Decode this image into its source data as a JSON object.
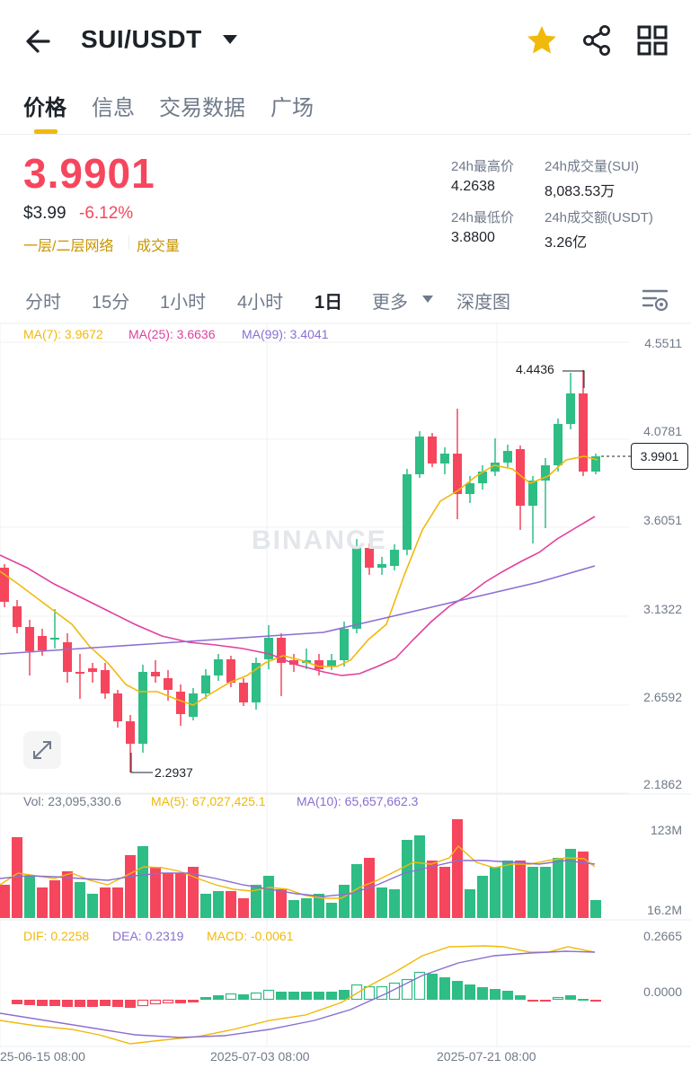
{
  "header": {
    "pair": "SUI/USDT",
    "icons": [
      "back-arrow-icon",
      "chevron-down-icon",
      "star-icon",
      "share-icon",
      "grid-icon"
    ]
  },
  "tabs": [
    {
      "label": "价格",
      "active": true
    },
    {
      "label": "信息",
      "active": false
    },
    {
      "label": "交易数据",
      "active": false
    },
    {
      "label": "广场",
      "active": false
    }
  ],
  "price": {
    "last": "3.9901",
    "usd": "$3.99",
    "change": "-6.12%",
    "tag_layer": "一层/二层网络",
    "tag_volume": "成交量"
  },
  "stats": {
    "high_label": "24h最高价",
    "high_value": "4.2638",
    "low_label": "24h最低价",
    "low_value": "3.8800",
    "vol_base_label": "24h成交量(SUI)",
    "vol_base_value": "8,083.53万",
    "vol_quote_label": "24h成交额(USDT)",
    "vol_quote_value": "3.26亿"
  },
  "intervals": [
    {
      "label": "分时",
      "active": false
    },
    {
      "label": "15分",
      "active": false
    },
    {
      "label": "1小时",
      "active": false
    },
    {
      "label": "4小时",
      "active": false
    },
    {
      "label": "1日",
      "active": true
    },
    {
      "label": "更多",
      "active": false
    },
    {
      "label": "深度图",
      "active": false
    }
  ],
  "colors": {
    "up": "#2ebd85",
    "down": "#f6465d",
    "ma7": "#f0b90b",
    "ma25": "#e040a0",
    "ma99": "#8a6fd1",
    "accent": "#f0b90b"
  },
  "chart": {
    "ma7": "MA(7): 3.9672",
    "ma25": "MA(25): 3.6636",
    "ma99": "MA(99): 3.4041",
    "price_axis": [
      "4.5511",
      "4.0781",
      "3.6051",
      "3.1322",
      "2.6592",
      "2.1862"
    ],
    "current_price": "3.9901",
    "high_marker": "4.4436",
    "low_marker": "2.2937",
    "watermark": "BINANCE",
    "vol": "Vol: 23,095,330.6",
    "vol_ma5": "MA(5): 67,027,425.1",
    "vol_ma10": "MA(10): 65,657,662.3",
    "vol_axis": [
      "123M",
      "16.2M"
    ],
    "dif": "DIF: 0.2258",
    "dea": "DEA: 0.2319",
    "macd": "MACD: -0.0061",
    "macd_axis": [
      "0.2665",
      "0.0000"
    ],
    "dates": [
      "25-06-15 08:00",
      "2025-07-03 08:00",
      "2025-07-21 08:00"
    ]
  }
}
